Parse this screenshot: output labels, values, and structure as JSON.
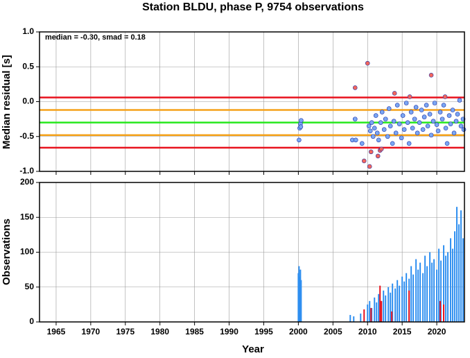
{
  "chart_data": [
    {
      "type": "scatter",
      "title": "Station BLDU, phase P, 9754 observations",
      "annotation": "median = -0.30, smad = 0.18",
      "ylabel": "Median residual [s]",
      "xlim": [
        1962.6,
        2024
      ],
      "xticks": [
        1965,
        1970,
        1975,
        1980,
        1985,
        1990,
        1995,
        2000,
        2005,
        2010,
        2015,
        2020
      ],
      "ylim": [
        -1,
        1
      ],
      "yticks": [
        {
          "value": -1,
          "label": "-1.0"
        },
        -0.5,
        {
          "value": 0,
          "label": "0.0"
        },
        0.5,
        {
          "value": 1,
          "label": "1.0"
        }
      ],
      "grid": true,
      "hlines": [
        {
          "value": 0.06,
          "color": "#e8111c"
        },
        {
          "value": -0.12,
          "color": "#f5a21a"
        },
        {
          "value": -0.3,
          "color": "#26e81c"
        },
        {
          "value": -0.48,
          "color": "#f5a21a"
        },
        {
          "value": -0.66,
          "color": "#e8111c"
        }
      ],
      "series": [
        {
          "color": "#7aa7f2",
          "x": [
            2000.1,
            2000.2,
            2000.3,
            2000.4,
            2000.35,
            2007.8,
            2008.3,
            2008.2,
            2009.2,
            2010.2,
            2010.4,
            2010.6,
            2010.8,
            2011.0,
            2011.2,
            2011.4,
            2011.6,
            2011.9,
            2012.1,
            2012.4,
            2012.6,
            2012.9,
            2013.1,
            2013.3,
            2013.6,
            2013.8,
            2014.1,
            2014.3,
            2014.6,
            2014.9,
            2015.1,
            2015.3,
            2015.6,
            2015.8,
            2016.0,
            2016.3,
            2016.5,
            2016.8,
            2017.0,
            2017.2,
            2017.5,
            2017.8,
            2018.0,
            2018.2,
            2018.5,
            2018.7,
            2019.0,
            2019.2,
            2019.5,
            2019.7,
            2020.0,
            2020.2,
            2020.5,
            2020.8,
            2021.0,
            2021.3,
            2021.5,
            2021.8,
            2022.0,
            2022.3,
            2022.5,
            2022.8,
            2023.0,
            2023.3,
            2023.5,
            2023.8,
            2023.9
          ],
          "values": [
            -0.55,
            -0.38,
            -0.32,
            -0.27,
            -0.36,
            -0.55,
            -0.55,
            -0.25,
            -0.6,
            -0.35,
            -0.42,
            -0.3,
            -0.5,
            -0.38,
            -0.2,
            -0.45,
            -0.55,
            -0.3,
            -0.15,
            -0.4,
            -0.25,
            -0.5,
            -0.1,
            -0.35,
            -0.6,
            -0.28,
            -0.45,
            -0.05,
            -0.32,
            -0.52,
            -0.2,
            -0.4,
            -0.02,
            -0.3,
            -0.6,
            -0.15,
            -0.38,
            -0.25,
            -0.08,
            -0.45,
            -0.3,
            -0.12,
            -0.4,
            -0.22,
            -0.05,
            -0.35,
            -0.18,
            -0.48,
            -0.28,
            -0.02,
            -0.33,
            -0.42,
            -0.15,
            -0.25,
            -0.05,
            -0.38,
            -0.6,
            -0.2,
            -0.32,
            -0.12,
            -0.45,
            -0.28,
            -0.18,
            0.02,
            -0.35,
            -0.25,
            -0.4
          ]
        },
        {
          "color": "#f2665c",
          "x": [
            2008.2,
            2010.0,
            2009.5,
            2010.3,
            2010.5,
            2011.5,
            2011.8,
            2012.0,
            2013.9,
            2016.1,
            2019.2,
            2021.2
          ],
          "values": [
            0.2,
            0.55,
            -0.85,
            -0.93,
            -0.72,
            -0.78,
            -0.7,
            -0.68,
            0.12,
            0.07,
            0.38,
            0.07
          ]
        }
      ]
    },
    {
      "type": "bar",
      "ylabel": "Observations",
      "xlabel": "Year",
      "xlim": [
        1962.6,
        2024
      ],
      "xticks": [
        1965,
        1970,
        1975,
        1980,
        1985,
        1990,
        1995,
        2000,
        2005,
        2010,
        2015,
        2020
      ],
      "ylim": [
        0,
        200
      ],
      "yticks": [
        0,
        50,
        100,
        150,
        200
      ],
      "grid": true,
      "series": [
        {
          "color": "#2f8ff0",
          "x": [
            2000.0,
            2000.1,
            2000.2,
            2000.3,
            2000.4,
            2007.5,
            2008.0,
            2009.0,
            2010.0,
            2010.3,
            2010.6,
            2011.0,
            2011.3,
            2011.6,
            2012.0,
            2012.3,
            2012.6,
            2013.0,
            2013.3,
            2013.6,
            2014.0,
            2014.3,
            2014.6,
            2015.0,
            2015.3,
            2015.6,
            2016.0,
            2016.3,
            2016.6,
            2017.0,
            2017.3,
            2017.6,
            2018.0,
            2018.3,
            2018.6,
            2019.0,
            2019.3,
            2019.6,
            2020.0,
            2020.3,
            2020.6,
            2021.0,
            2021.3,
            2021.6,
            2022.0,
            2022.3,
            2022.6,
            2022.9,
            2023.2,
            2023.5,
            2023.8
          ],
          "values": [
            70,
            80,
            65,
            75,
            60,
            10,
            8,
            12,
            25,
            30,
            20,
            35,
            28,
            40,
            30,
            45,
            38,
            50,
            42,
            55,
            48,
            60,
            52,
            65,
            58,
            70,
            62,
            80,
            68,
            90,
            75,
            85,
            70,
            95,
            80,
            100,
            85,
            90,
            75,
            105,
            88,
            110,
            95,
            100,
            120,
            105,
            130,
            165,
            140,
            160,
            120
          ]
        },
        {
          "color": "#e8111c",
          "x": [
            2009.5,
            2010.5,
            2011.8,
            2012.0,
            2013.5,
            2016.0,
            2020.5,
            2021.0
          ],
          "values": [
            18,
            20,
            52,
            30,
            15,
            45,
            30,
            25
          ]
        }
      ]
    }
  ]
}
